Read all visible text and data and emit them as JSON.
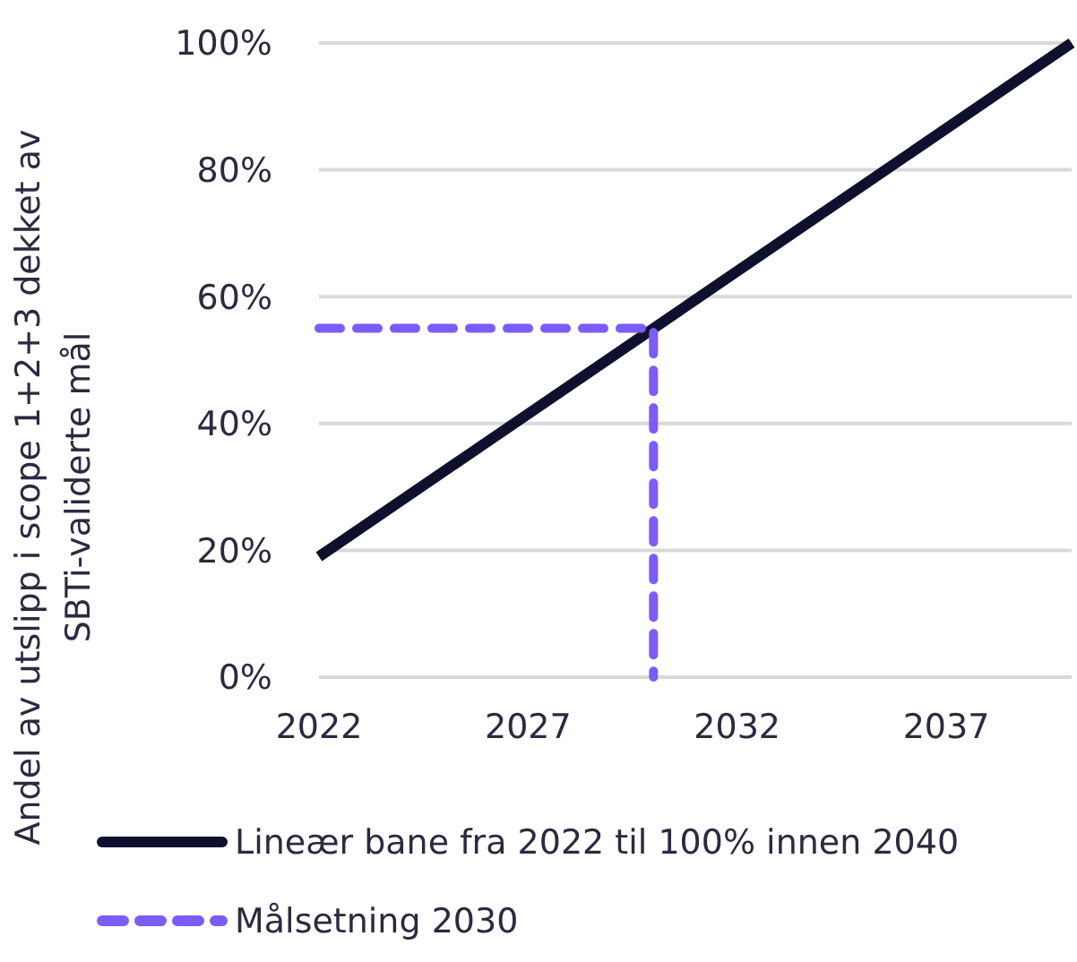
{
  "chart_data": {
    "type": "line",
    "ylabel": "Andel av utslipp i scope 1+2+3 dekket av\nSBTi-validerte mål",
    "series": [
      {
        "name": "Lineær bane fra 2022 til 100% innen 2040",
        "color": "#0f0f2e",
        "x": [
          2022,
          2040
        ],
        "values": [
          19,
          100
        ],
        "line_style": "solid"
      },
      {
        "name": "Målsetning 2030",
        "color": "#7b5cf6",
        "x": [
          2022,
          2030,
          2030
        ],
        "values": [
          55,
          55,
          0
        ],
        "line_style": "dashed"
      }
    ],
    "xlim": [
      2022,
      2040
    ],
    "xticks": [
      2022,
      2027,
      2032,
      2037
    ],
    "ylim": [
      0,
      100
    ],
    "yticks": [
      {
        "value": 0,
        "label": "0%"
      },
      {
        "value": 20,
        "label": "20%"
      },
      {
        "value": 40,
        "label": "40%"
      },
      {
        "value": 60,
        "label": "60%"
      },
      {
        "value": 80,
        "label": "80%"
      },
      {
        "value": 100,
        "label": "100%"
      }
    ],
    "grid": "y",
    "legend": "bottom"
  }
}
